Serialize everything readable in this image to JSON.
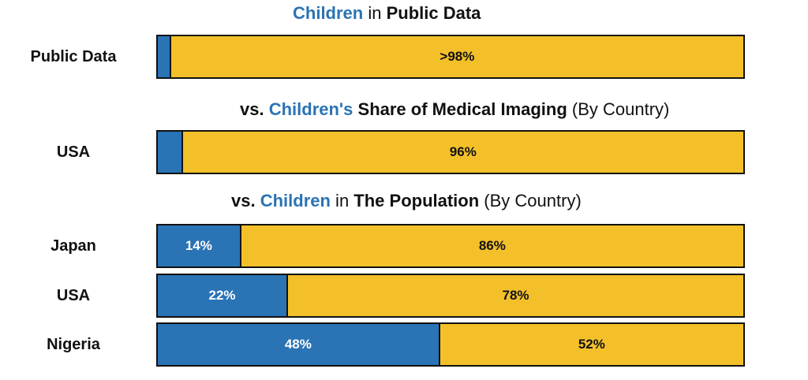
{
  "chart_data": {
    "type": "bar",
    "stacked": true,
    "orientation": "horizontal",
    "colors": {
      "children": "#2a73b5",
      "other": "#f3c02a"
    },
    "sections": [
      {
        "title": [
          {
            "text": "Children",
            "style": "blue"
          },
          {
            "text": " in ",
            "style": "normal"
          },
          {
            "text": "Public Data",
            "style": "bold"
          }
        ],
        "rows": [
          {
            "label": "Public Data",
            "children": 2,
            "other": 98,
            "children_label": "",
            "other_label": ">98%"
          }
        ]
      },
      {
        "title": [
          {
            "text": "vs. ",
            "style": "bold"
          },
          {
            "text": "Children's",
            "style": "blue"
          },
          {
            "text": " Share of Medical Imaging",
            "style": "bold"
          },
          {
            "text": " (By Country)",
            "style": "normal"
          }
        ],
        "rows": [
          {
            "label": "USA",
            "children": 4,
            "other": 96,
            "children_label": "",
            "other_label": "96%"
          }
        ]
      },
      {
        "title": [
          {
            "text": "vs. ",
            "style": "bold"
          },
          {
            "text": "Children",
            "style": "blue"
          },
          {
            "text": " in ",
            "style": "normal"
          },
          {
            "text": "The Population",
            "style": "bold"
          },
          {
            "text": " (By Country)",
            "style": "normal"
          }
        ],
        "rows": [
          {
            "label": "Japan",
            "children": 14,
            "other": 86,
            "children_label": "14%",
            "other_label": "86%"
          },
          {
            "label": "USA",
            "children": 22,
            "other": 78,
            "children_label": "22%",
            "other_label": "78%"
          },
          {
            "label": "Nigeria",
            "children": 48,
            "other": 52,
            "children_label": "48%",
            "other_label": "52%"
          }
        ]
      }
    ]
  }
}
